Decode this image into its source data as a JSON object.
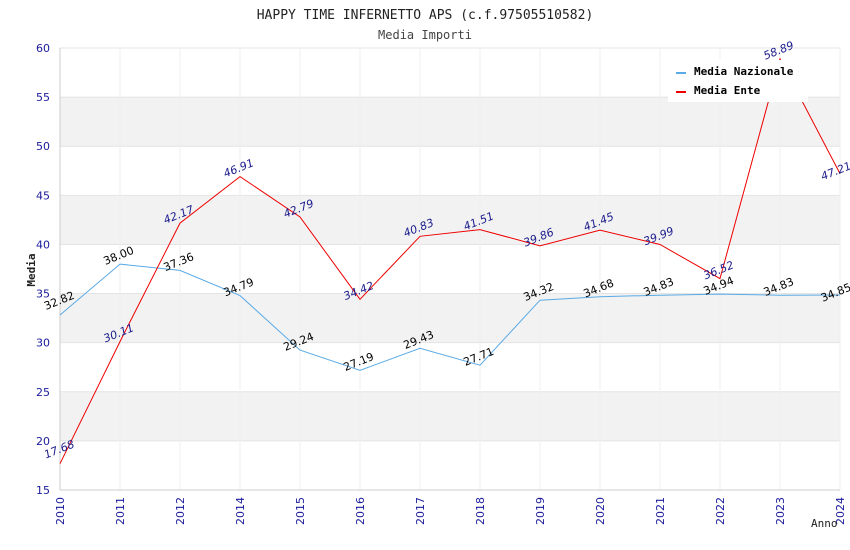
{
  "chart_data": {
    "type": "line",
    "title": "HAPPY TIME INFERNETTO APS (c.f.97505510582)",
    "subtitle": "Media Importi",
    "xlabel": "Anno",
    "ylabel": "Media",
    "ylim": [
      15,
      60
    ],
    "yticks": [
      15,
      20,
      25,
      30,
      35,
      40,
      45,
      50,
      55,
      60
    ],
    "grid": true,
    "legend_position": "top-right",
    "categories": [
      "2010",
      "2011",
      "2012",
      "2014",
      "2015",
      "2016",
      "2017",
      "2018",
      "2019",
      "2020",
      "2021",
      "2022",
      "2023",
      "2024"
    ],
    "series": [
      {
        "name": "Media Nazionale",
        "color": "#5aaae6",
        "label_color": "#000000",
        "values": [
          32.82,
          38.0,
          37.36,
          34.79,
          29.24,
          27.19,
          29.43,
          27.71,
          34.32,
          34.68,
          34.83,
          34.94,
          34.83,
          34.85
        ],
        "labels": [
          "32.82",
          "38.00",
          "37.36",
          "34.79",
          "29.24",
          "27.19",
          "29.43",
          "27.71",
          "34.32",
          "34.68",
          "34.83",
          "34.94",
          "34.83",
          "34.85"
        ]
      },
      {
        "name": "Media Ente",
        "color": "#ee0000",
        "label_color": "#1a1a8c",
        "values": [
          17.68,
          30.11,
          42.17,
          46.91,
          42.79,
          34.42,
          40.83,
          41.51,
          39.86,
          41.45,
          39.99,
          36.52,
          58.89,
          47.21
        ],
        "labels": [
          "17.68",
          "30.11",
          "42.17",
          "46.91",
          "42.79",
          "34.42",
          "40.83",
          "41.51",
          "39.86",
          "41.45",
          "39.99",
          "36.52",
          "58.89",
          "47.21"
        ]
      }
    ]
  }
}
